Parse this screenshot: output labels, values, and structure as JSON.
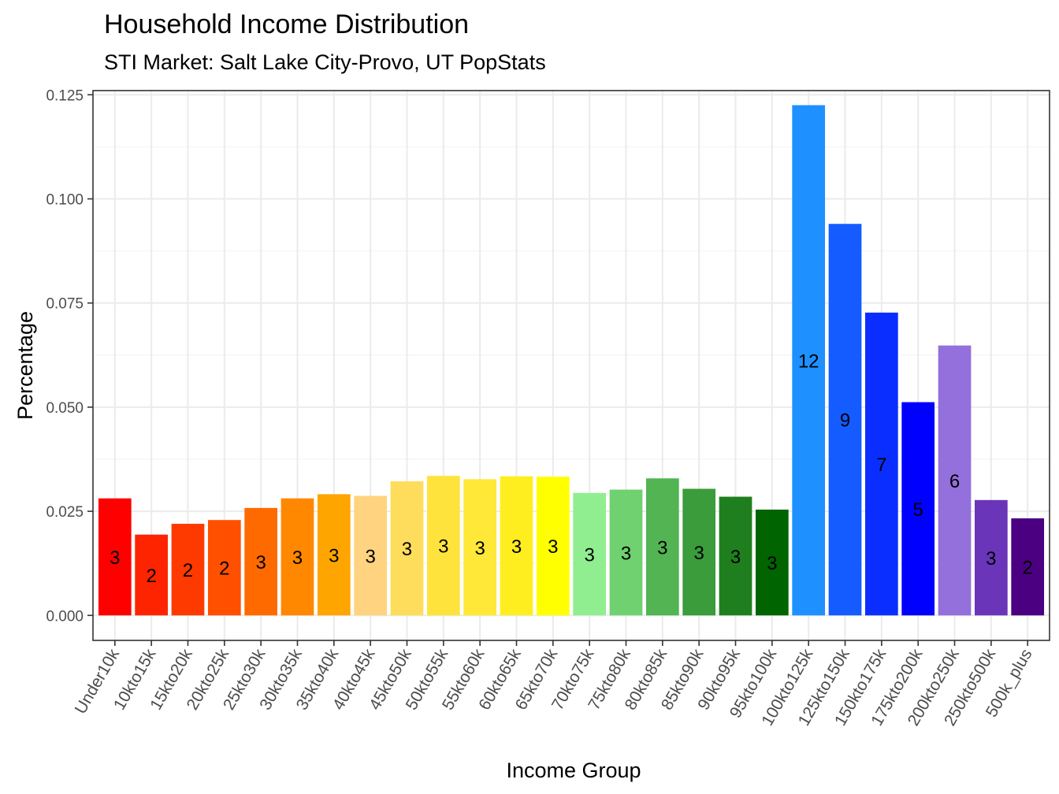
{
  "chart_data": {
    "type": "bar",
    "title": "Household Income Distribution",
    "subtitle": "STI Market: Salt Lake City-Provo, UT PopStats",
    "xlabel": "Income Group",
    "ylabel": "Percentage",
    "ylim": [
      -0.006,
      0.126
    ],
    "yticks": [
      "0.000",
      "0.025",
      "0.050",
      "0.075",
      "0.100",
      "0.125"
    ],
    "ytick_values": [
      0,
      0.025,
      0.05,
      0.075,
      0.1,
      0.125
    ],
    "grid": true,
    "legend": "none",
    "categories": [
      "Under10k",
      "10kto15k",
      "15kto20k",
      "20kto25k",
      "25kto30k",
      "30kto35k",
      "35kto40k",
      "40kto45k",
      "45kto50k",
      "50kto55k",
      "55kto60k",
      "60kto65k",
      "65kto70k",
      "70kto75k",
      "75kto80k",
      "80kto85k",
      "85kto90k",
      "90kto95k",
      "95kto100k",
      "100kto125k",
      "125kto150k",
      "150kto175k",
      "175kto200k",
      "200kto250k",
      "250kto500k",
      "500k_plus"
    ],
    "values": [
      0.0281,
      0.0194,
      0.022,
      0.0229,
      0.0258,
      0.0281,
      0.0291,
      0.0287,
      0.0322,
      0.0335,
      0.0327,
      0.0334,
      0.0333,
      0.0294,
      0.0302,
      0.0329,
      0.0304,
      0.0285,
      0.0254,
      0.1225,
      0.094,
      0.0727,
      0.0512,
      0.0648,
      0.0277,
      0.0233
    ],
    "labels": [
      "3",
      "2",
      "2",
      "2",
      "3",
      "3",
      "3",
      "3",
      "3",
      "3",
      "3",
      "3",
      "3",
      "3",
      "3",
      "3",
      "3",
      "3",
      "3",
      "12",
      "9",
      "7",
      "5",
      "6",
      "3",
      "2"
    ],
    "colors": [
      "#ff0000",
      "#ff2400",
      "#ff3a00",
      "#ff5000",
      "#ff6a00",
      "#ff8800",
      "#ffa500",
      "#ffd37f",
      "#ffdd5c",
      "#ffe33d",
      "#ffe838",
      "#ffee1f",
      "#ffff00",
      "#90ee90",
      "#6fd16f",
      "#52b452",
      "#3a9c3a",
      "#1f7f1f",
      "#006400",
      "#1e90ff",
      "#145cff",
      "#0a2eff",
      "#0000ff",
      "#9370db",
      "#6a35b8",
      "#4b0082"
    ]
  }
}
